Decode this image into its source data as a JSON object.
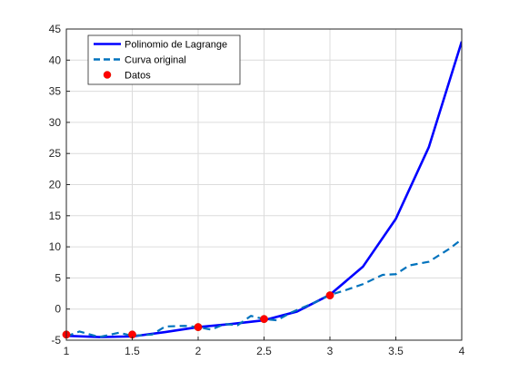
{
  "chart_data": {
    "type": "line",
    "xlim": [
      1,
      4
    ],
    "ylim": [
      -5,
      45
    ],
    "grid": true,
    "legend_placement": "top-left",
    "x_ticks": [
      "1",
      "1.5",
      "2",
      "2.5",
      "3",
      "3.5",
      "4"
    ],
    "y_ticks": [
      "-5",
      "0",
      "5",
      "10",
      "15",
      "20",
      "25",
      "30",
      "35",
      "40",
      "45"
    ],
    "series": [
      {
        "name": "Polinomio de Lagrange",
        "style": "solid",
        "color": "#0000ff",
        "x": [
          1.0,
          1.25,
          1.5,
          1.75,
          2.0,
          2.25,
          2.5,
          2.75,
          3.0,
          3.25,
          3.5,
          3.75,
          4.0
        ],
        "y": [
          -4.3,
          -4.5,
          -4.4,
          -3.7,
          -2.9,
          -2.4,
          -1.8,
          -0.4,
          2.3,
          6.8,
          14.5,
          26.0,
          43.0
        ]
      },
      {
        "name": "Curva original",
        "style": "dashed",
        "color": "#0072bd",
        "x": [
          1.0,
          1.1,
          1.25,
          1.4,
          1.5,
          1.65,
          1.75,
          1.9,
          2.0,
          2.1,
          2.2,
          2.3,
          2.4,
          2.5,
          2.6,
          2.7,
          2.8,
          2.9,
          3.0,
          3.1,
          3.25,
          3.4,
          3.5,
          3.6,
          3.75,
          3.9,
          4.0
        ],
        "y": [
          -4.4,
          -3.6,
          -4.5,
          -3.8,
          -4.3,
          -4.1,
          -2.8,
          -2.7,
          -2.9,
          -3.3,
          -2.4,
          -2.6,
          -1.1,
          -1.6,
          -1.8,
          -0.6,
          0.3,
          1.2,
          2.3,
          2.9,
          4.0,
          5.5,
          5.6,
          7.0,
          7.6,
          9.6,
          11.2
        ]
      },
      {
        "name": "Datos",
        "style": "markers",
        "color": "#ff0000",
        "x": [
          1.0,
          1.5,
          2.0,
          2.5,
          3.0
        ],
        "y": [
          -4.1,
          -4.1,
          -2.9,
          -1.6,
          2.2
        ]
      }
    ]
  }
}
